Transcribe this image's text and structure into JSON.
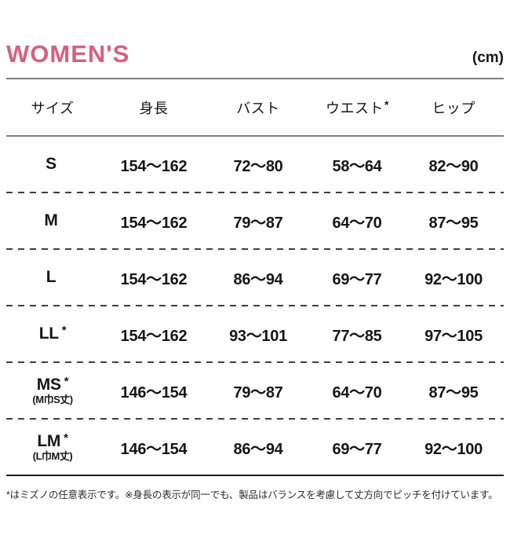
{
  "page": {
    "title": "WOMEN'S",
    "unit": "(cm)",
    "accent_pink": "#d6607e",
    "line_gray": "#7e7e7e",
    "line_dark": "#1e1e1e"
  },
  "table": {
    "headers": {
      "size": "サイズ",
      "height": "身長",
      "bust": "バスト",
      "waist": "ウエスト",
      "waist_mark": "*",
      "hip": "ヒップ"
    },
    "rows": [
      {
        "size": "S",
        "mark": "",
        "sub": "",
        "height": "154〜162",
        "bust": "72〜80",
        "waist": "58〜64",
        "hip": "82〜90"
      },
      {
        "size": "M",
        "mark": "",
        "sub": "",
        "height": "154〜162",
        "bust": "79〜87",
        "waist": "64〜70",
        "hip": "87〜95"
      },
      {
        "size": "L",
        "mark": "",
        "sub": "",
        "height": "154〜162",
        "bust": "86〜94",
        "waist": "69〜77",
        "hip": "92〜100"
      },
      {
        "size": "LL",
        "mark": "*",
        "sub": "",
        "height": "154〜162",
        "bust": "93〜101",
        "waist": "77〜85",
        "hip": "97〜105"
      },
      {
        "size": "MS",
        "mark": "*",
        "sub": "(M巾S丈)",
        "height": "146〜154",
        "bust": "79〜87",
        "waist": "64〜70",
        "hip": "87〜95"
      },
      {
        "size": "LM",
        "mark": "*",
        "sub": "(L巾M丈)",
        "height": "146〜154",
        "bust": "86〜94",
        "waist": "69〜77",
        "hip": "92〜100"
      }
    ]
  },
  "footer": {
    "note": "*はミズノの任意表示です。※身長の表示が同一でも、製品はバランスを考慮して丈方向でピッチを付けています。"
  }
}
